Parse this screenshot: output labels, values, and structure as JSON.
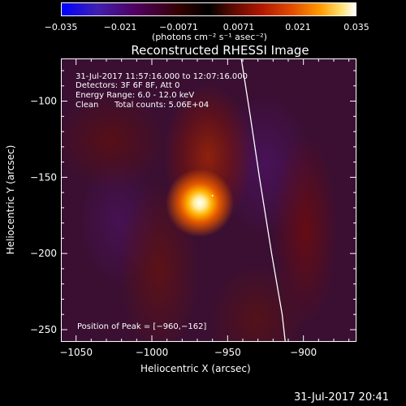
{
  "colorbar": {
    "ticks": [
      "−0.035",
      "−0.021",
      "−0.0071",
      "0.0071",
      "0.021",
      "0.035"
    ],
    "units": "(photons cm⁻² s⁻¹ asec⁻²)",
    "colors": [
      "#0000ff",
      "#500060",
      "#000000",
      "#b01800",
      "#ff9a00",
      "#ffffff"
    ]
  },
  "plot_title": "Reconstructed RHESSI Image",
  "annotations": {
    "time_range": "31-Jul-2017 11:57:16.000 to 12:07:16.000",
    "detectors": "Detectors: 3F 6F 8F, Att 0",
    "energy": "Energy Range: 6.0 - 12.0 keV",
    "clean": "Clean",
    "counts": "Total counts: 5.06E+04",
    "peak": "Position of Peak = [−960,−162]"
  },
  "footer_timestamp": "31-Jul-2017 20:41",
  "chart_data": {
    "type": "heatmap",
    "title": "Reconstructed RHESSI Image",
    "xlabel": "Heliocentric X (arcsec)",
    "ylabel": "Heliocentric Y (arcsec)",
    "xlim": [
      -1060,
      -865
    ],
    "ylim": [
      -258,
      -72
    ],
    "xticks": [
      -1050,
      -1000,
      -950,
      -900
    ],
    "xtick_labels": [
      "−1050",
      "−1000",
      "−950",
      "−900"
    ],
    "yticks": [
      -100,
      -150,
      -200,
      -250
    ],
    "ytick_labels": [
      "−100",
      "−150",
      "−200",
      "−250"
    ],
    "colorbar_range": [
      -0.035,
      0.035
    ],
    "peak": {
      "x": -960,
      "y": -162
    },
    "limb_curve": [
      [
        -941,
        -72
      ],
      [
        -935,
        -110
      ],
      [
        -929,
        -150
      ],
      [
        -921,
        -200
      ],
      [
        -914,
        -240
      ],
      [
        -912,
        -258
      ]
    ]
  }
}
